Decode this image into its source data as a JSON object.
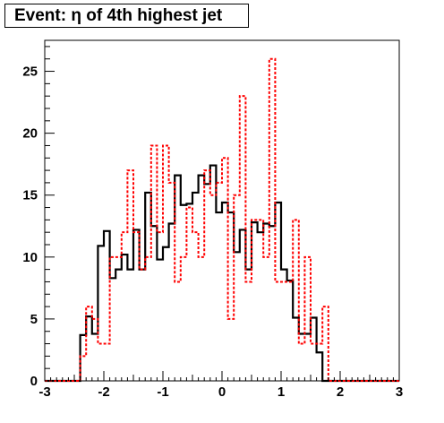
{
  "chart_data": {
    "type": "histogram",
    "title": "Event: η of 4th highest jet",
    "xlim": [
      -3,
      3
    ],
    "ylim": [
      0,
      27.5
    ],
    "x_ticks": [
      -3,
      -2,
      -1,
      0,
      1,
      2,
      3
    ],
    "y_ticks": [
      0,
      5,
      10,
      15,
      20,
      25
    ],
    "bin_edges_start": -3,
    "bin_width": 0.1,
    "grid": false,
    "series": [
      {
        "color": "#000000",
        "line": "solid",
        "values": [
          0,
          0,
          0,
          0,
          0,
          0,
          3.7,
          5.2,
          3.8,
          10.9,
          12.1,
          8.3,
          9,
          10.2,
          9,
          12.2,
          9,
          15.2,
          12.5,
          9.8,
          10.8,
          12.7,
          16.6,
          14.2,
          14.3,
          15.2,
          16.6,
          15.9,
          17.4,
          13.6,
          14.4,
          13.6,
          10.4,
          12.2,
          9,
          12.8,
          12,
          12.7,
          12.5,
          14.4,
          9,
          8.1,
          5.1,
          3.8,
          3.8,
          5.1,
          2.3,
          0,
          0,
          0,
          0,
          0,
          0,
          0,
          0,
          0,
          0,
          0,
          0,
          0
        ]
      },
      {
        "color": "#ff0000",
        "line": "dashed",
        "values": [
          0,
          0,
          0,
          0,
          0,
          0,
          2,
          6,
          5,
          3,
          3,
          10,
          10,
          12,
          17,
          12,
          9,
          10,
          19,
          12,
          19,
          16,
          8,
          10,
          14,
          12,
          10,
          17,
          15,
          16,
          18,
          5,
          15,
          23,
          8,
          13,
          13,
          10,
          26,
          8,
          8,
          8,
          13,
          3,
          10,
          3,
          3,
          6,
          0,
          0,
          0,
          0,
          0,
          0,
          0,
          0,
          0,
          0,
          0,
          0
        ]
      }
    ]
  }
}
